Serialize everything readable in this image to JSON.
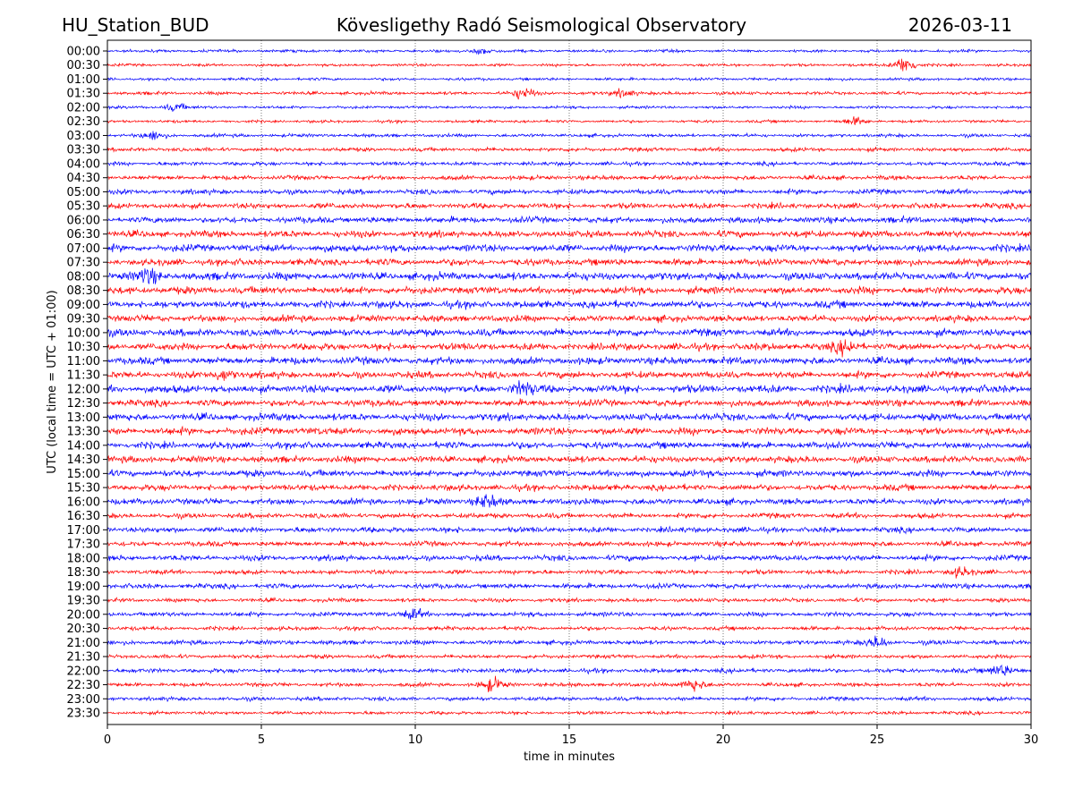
{
  "chart_data": {
    "type": "line",
    "title_left": "HU_Station_BUD",
    "title_center": "Kövesligethy Radó Seismological Observatory",
    "title_right": "2026-03-11",
    "xlabel": "time in minutes",
    "ylabel": "UTC (local time = UTC + 01:00)",
    "xlim": [
      0,
      30
    ],
    "xticks": [
      "0",
      "5",
      "10",
      "15",
      "20",
      "25",
      "30"
    ],
    "xtick_values": [
      0,
      5,
      10,
      15,
      20,
      25,
      30
    ],
    "grid": "vertical dotted",
    "colors": [
      "#0000ff",
      "#ff0000"
    ],
    "rows": [
      "00:00",
      "00:30",
      "01:00",
      "01:30",
      "02:00",
      "02:30",
      "03:00",
      "03:30",
      "04:00",
      "04:30",
      "05:00",
      "05:30",
      "06:00",
      "06:30",
      "07:00",
      "07:30",
      "08:00",
      "08:30",
      "09:00",
      "09:30",
      "10:00",
      "10:30",
      "11:00",
      "11:30",
      "12:00",
      "12:30",
      "13:00",
      "13:30",
      "14:00",
      "14:30",
      "15:00",
      "15:30",
      "16:00",
      "16:30",
      "17:00",
      "17:30",
      "18:00",
      "18:30",
      "19:00",
      "19:30",
      "20:00",
      "20:30",
      "21:00",
      "21:30",
      "22:00",
      "22:30",
      "23:00",
      "23:30"
    ],
    "noise_level": [
      0.25,
      0.25,
      0.25,
      0.3,
      0.25,
      0.25,
      0.3,
      0.35,
      0.35,
      0.4,
      0.45,
      0.5,
      0.55,
      0.6,
      0.65,
      0.6,
      0.7,
      0.65,
      0.65,
      0.6,
      0.65,
      0.65,
      0.65,
      0.6,
      0.7,
      0.6,
      0.65,
      0.65,
      0.6,
      0.6,
      0.6,
      0.55,
      0.55,
      0.45,
      0.5,
      0.45,
      0.5,
      0.4,
      0.45,
      0.35,
      0.4,
      0.35,
      0.4,
      0.35,
      0.4,
      0.35,
      0.35,
      0.3
    ],
    "events": [
      {
        "row": "00:00",
        "minute": 12.2,
        "strength": 0.5
      },
      {
        "row": "00:30",
        "minute": 25.9,
        "strength": 1.4
      },
      {
        "row": "01:30",
        "minute": 13.5,
        "strength": 0.9
      },
      {
        "row": "01:30",
        "minute": 16.8,
        "strength": 0.6
      },
      {
        "row": "02:00",
        "minute": 2.2,
        "strength": 0.6
      },
      {
        "row": "02:30",
        "minute": 24.3,
        "strength": 0.6
      },
      {
        "row": "03:00",
        "minute": 1.5,
        "strength": 0.7
      },
      {
        "row": "08:00",
        "minute": 1.3,
        "strength": 1.0
      },
      {
        "row": "10:30",
        "minute": 24.0,
        "strength": 0.9
      },
      {
        "row": "11:30",
        "minute": 3.8,
        "strength": 0.8
      },
      {
        "row": "12:00",
        "minute": 13.5,
        "strength": 1.0
      },
      {
        "row": "16:00",
        "minute": 12.3,
        "strength": 1.0
      },
      {
        "row": "18:30",
        "minute": 27.7,
        "strength": 0.7
      },
      {
        "row": "20:00",
        "minute": 10.0,
        "strength": 0.8
      },
      {
        "row": "21:00",
        "minute": 25.0,
        "strength": 0.8
      },
      {
        "row": "22:00",
        "minute": 29.0,
        "strength": 1.0
      },
      {
        "row": "22:30",
        "minute": 12.5,
        "strength": 1.0
      },
      {
        "row": "22:30",
        "minute": 19.0,
        "strength": 1.0
      }
    ]
  }
}
